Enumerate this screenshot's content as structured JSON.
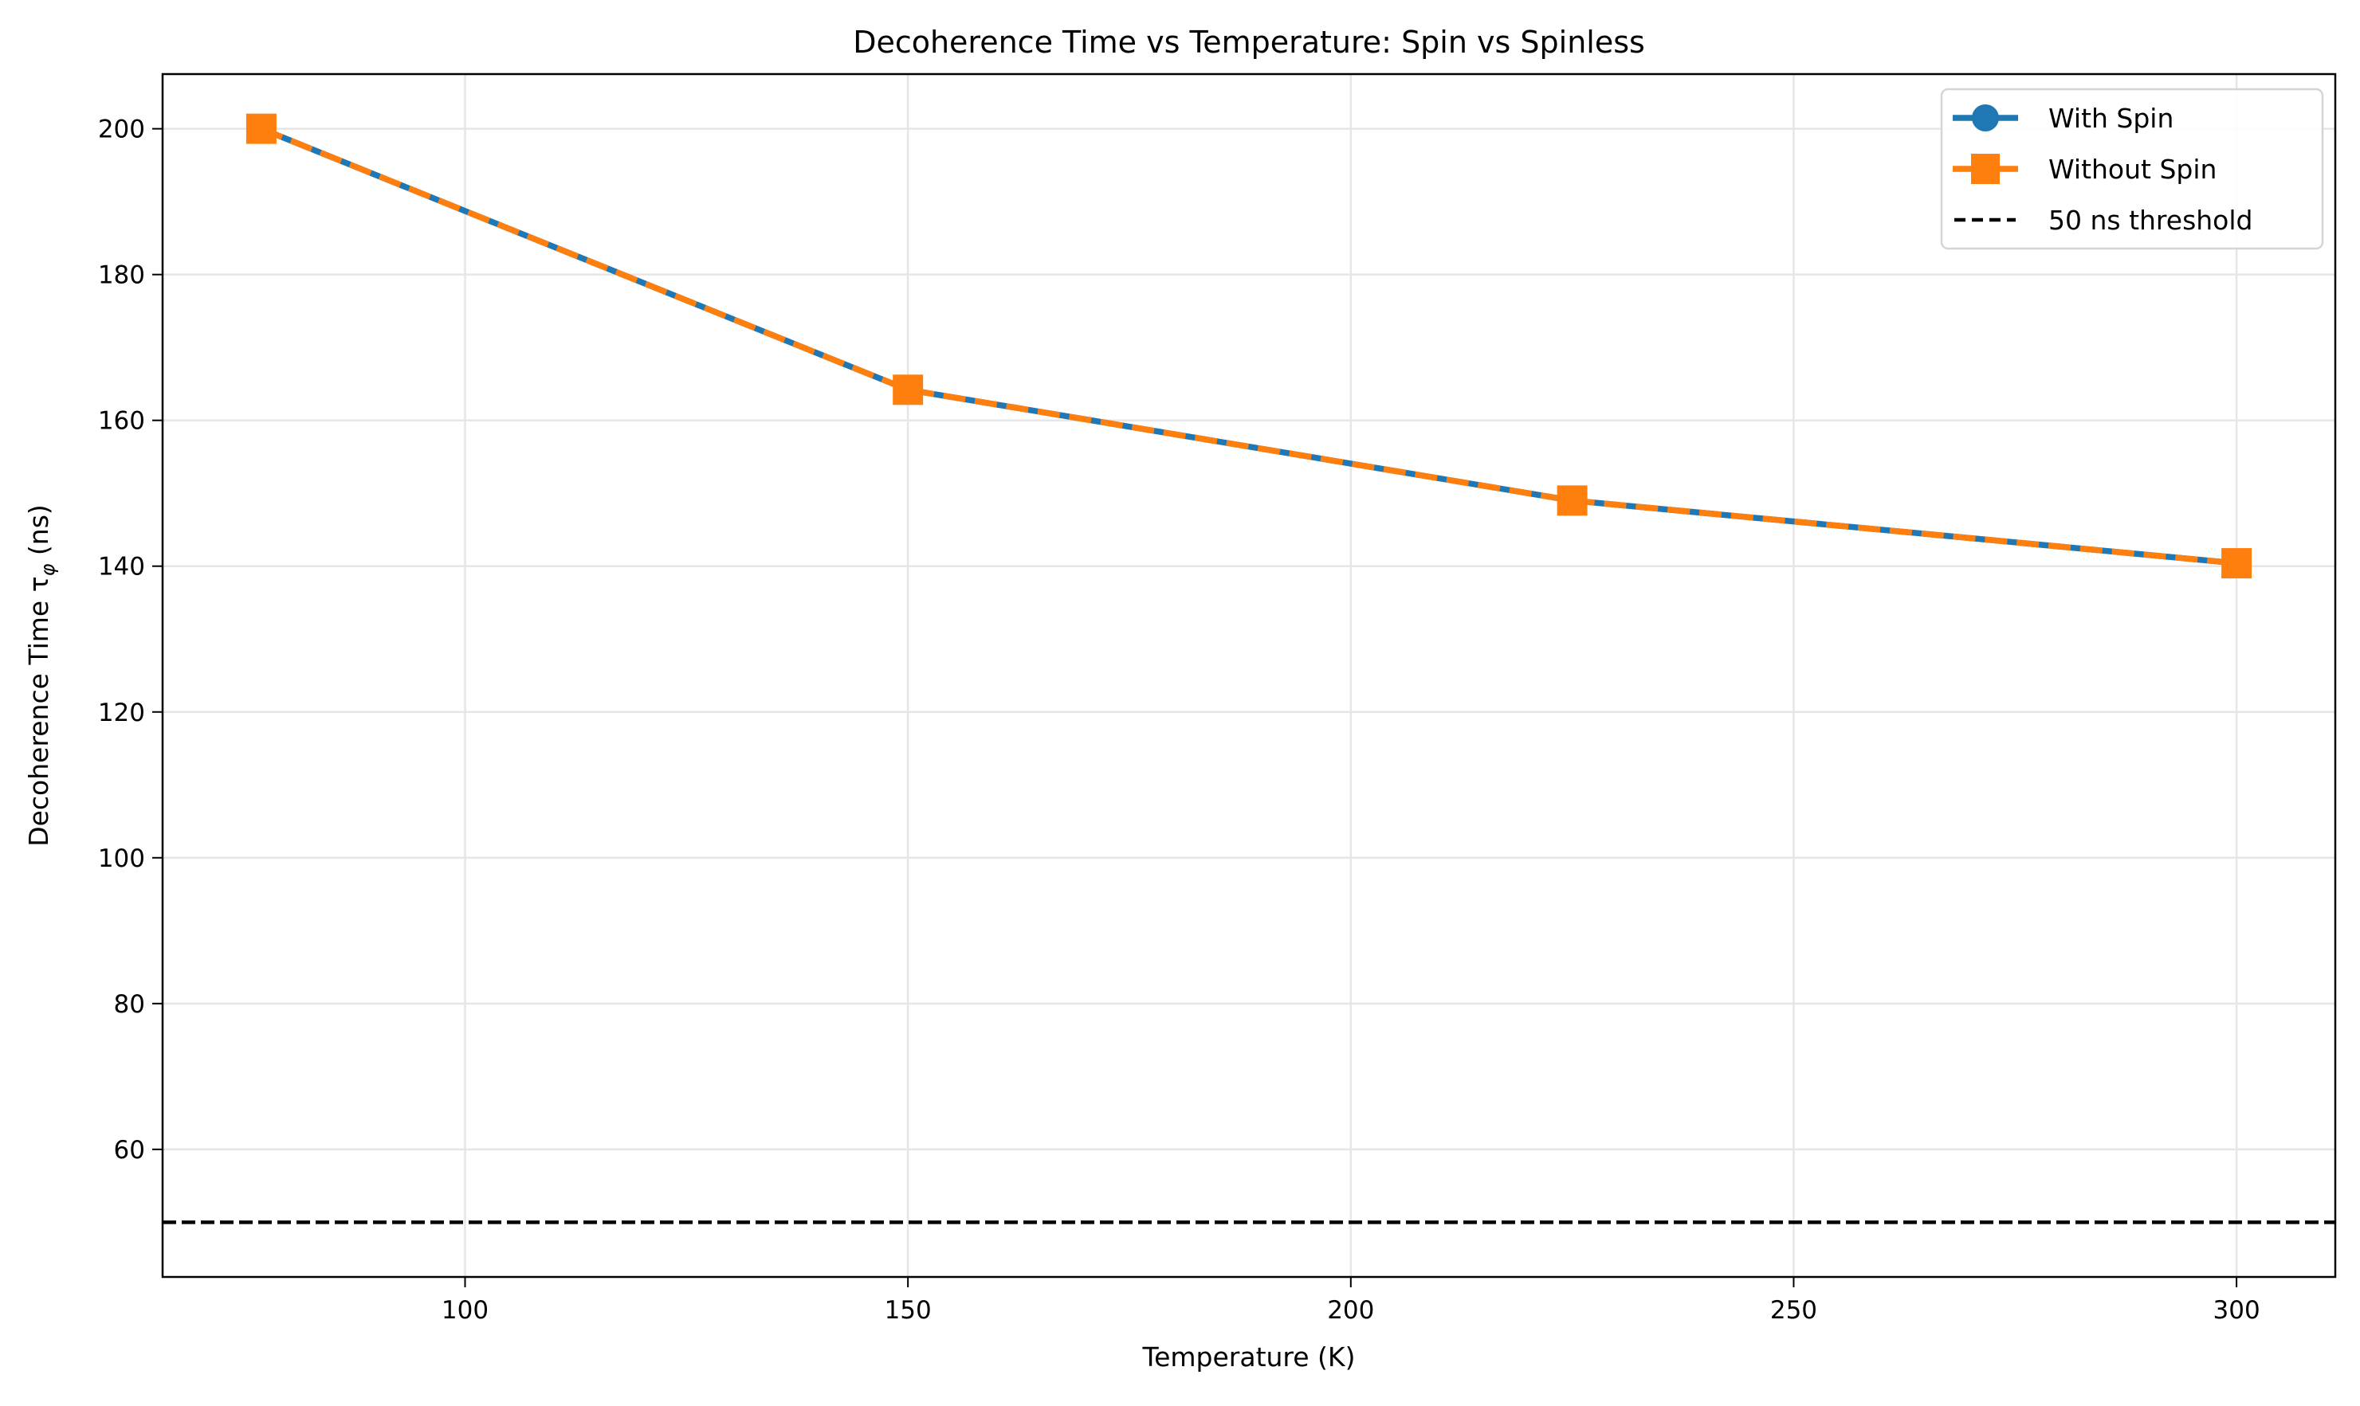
{
  "chart_data": {
    "type": "line",
    "title": "Decoherence Time vs Temperature: Spin vs Spinless",
    "xlabel": "Temperature (K)",
    "ylabel": "Decoherence Time τ",
    "ylabel_subscript": "φ",
    "ylabel_unit": " (ns)",
    "xlim": [
      65.85,
      311.15
    ],
    "ylim": [
      42.5,
      207.5
    ],
    "xticks": [
      100,
      150,
      200,
      250,
      300
    ],
    "yticks": [
      60,
      80,
      100,
      120,
      140,
      160,
      180,
      200
    ],
    "grid": true,
    "legend_placement": "top-right",
    "x": [
      77,
      150,
      225,
      300
    ],
    "series": [
      {
        "name": "With Spin",
        "values": [
          200.0,
          164.2,
          149.0,
          140.4
        ],
        "color": "#1f77b4",
        "marker": "circle",
        "linestyle": "solid"
      },
      {
        "name": "Without Spin",
        "values": [
          200.0,
          164.2,
          149.0,
          140.4
        ],
        "color": "#ff7f0e",
        "marker": "square",
        "linestyle": "dashed"
      }
    ],
    "hlines": [
      {
        "name": "50 ns threshold",
        "y": 50,
        "color": "#000000",
        "linestyle": "dashed"
      }
    ]
  }
}
